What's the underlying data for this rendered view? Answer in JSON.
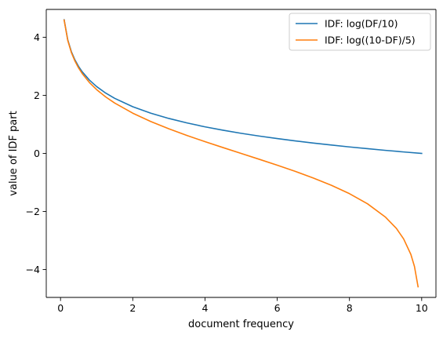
{
  "chart_data": {
    "type": "line",
    "title": "",
    "xlabel": "document frequency",
    "ylabel": "value of IDF part",
    "xlim": [
      -0.395,
      10.395
    ],
    "ylim": [
      -4.96,
      4.96
    ],
    "xticks": [
      0,
      2,
      4,
      6,
      8,
      10
    ],
    "xtick_labels": [
      "0",
      "2",
      "4",
      "6",
      "8",
      "10"
    ],
    "yticks": [
      -4,
      -2,
      0,
      2,
      4
    ],
    "ytick_labels": [
      "−4",
      "−2",
      "0",
      "2",
      "4"
    ],
    "grid": false,
    "legend_position": "top-right",
    "series": [
      {
        "name": "IDF: log(DF/10)",
        "color": "#1f77b4",
        "x": [
          0.1,
          0.2,
          0.3,
          0.4,
          0.5,
          0.6,
          0.8,
          1.0,
          1.25,
          1.5,
          2.0,
          2.5,
          3.0,
          3.5,
          4.0,
          4.5,
          5.0,
          5.5,
          6.0,
          6.5,
          7.0,
          7.5,
          8.0,
          8.5,
          9.0,
          9.5,
          10.0
        ],
        "y": [
          4.605,
          3.912,
          3.507,
          3.219,
          2.996,
          2.813,
          2.526,
          2.303,
          2.079,
          1.897,
          1.609,
          1.386,
          1.204,
          1.05,
          0.916,
          0.799,
          0.693,
          0.598,
          0.511,
          0.431,
          0.357,
          0.288,
          0.223,
          0.163,
          0.105,
          0.051,
          0.0
        ]
      },
      {
        "name": "IDF: log((10-DF)/5)",
        "color": "#ff7f0e",
        "x": [
          0.1,
          0.2,
          0.3,
          0.4,
          0.5,
          0.6,
          0.8,
          1.0,
          1.25,
          1.5,
          2.0,
          2.5,
          3.0,
          3.5,
          4.0,
          4.5,
          5.0,
          5.5,
          6.0,
          6.5,
          7.0,
          7.5,
          8.0,
          8.5,
          9.0,
          9.3,
          9.5,
          9.7,
          9.8,
          9.9
        ],
        "y": [
          4.595,
          3.892,
          3.476,
          3.178,
          2.944,
          2.751,
          2.442,
          2.197,
          1.946,
          1.735,
          1.386,
          1.099,
          0.847,
          0.619,
          0.405,
          0.201,
          0.0,
          -0.201,
          -0.405,
          -0.619,
          -0.847,
          -1.099,
          -1.386,
          -1.735,
          -2.197,
          -2.584,
          -2.944,
          -3.476,
          -3.892,
          -4.595
        ]
      }
    ]
  }
}
